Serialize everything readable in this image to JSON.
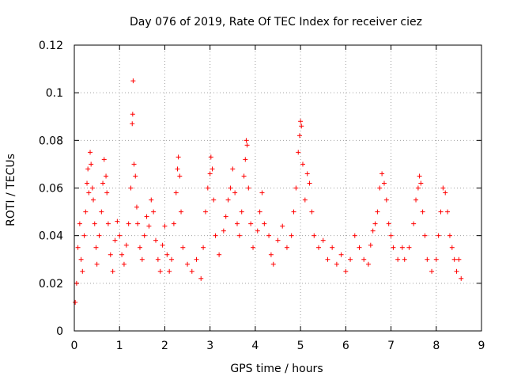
{
  "chart_data": {
    "type": "scatter",
    "title": "Day 076 of 2019, Rate Of TEC Index for receiver ciez",
    "xlabel": "GPS time / hours",
    "ylabel": "ROTI / TECUs",
    "xlim": [
      0,
      9
    ],
    "ylim": [
      0,
      0.12
    ],
    "x_ticks": [
      "0",
      "1",
      "2",
      "3",
      "4",
      "5",
      "6",
      "7",
      "8",
      "9"
    ],
    "y_ticks": [
      "0",
      "0.02",
      "0.04",
      "0.06",
      "0.08",
      "0.1",
      "0.12"
    ],
    "grid": true,
    "marker": "+",
    "color": "#ff0000",
    "series": [
      {
        "name": "ROTI",
        "points": [
          [
            0.02,
            0.012
          ],
          [
            0.05,
            0.02
          ],
          [
            0.08,
            0.035
          ],
          [
            0.12,
            0.045
          ],
          [
            0.15,
            0.03
          ],
          [
            0.18,
            0.025
          ],
          [
            0.22,
            0.04
          ],
          [
            0.25,
            0.05
          ],
          [
            0.28,
            0.062
          ],
          [
            0.3,
            0.068
          ],
          [
            0.32,
            0.058
          ],
          [
            0.35,
            0.075
          ],
          [
            0.37,
            0.07
          ],
          [
            0.4,
            0.06
          ],
          [
            0.42,
            0.055
          ],
          [
            0.45,
            0.045
          ],
          [
            0.48,
            0.035
          ],
          [
            0.5,
            0.028
          ],
          [
            0.55,
            0.04
          ],
          [
            0.6,
            0.05
          ],
          [
            0.63,
            0.062
          ],
          [
            0.66,
            0.072
          ],
          [
            0.7,
            0.065
          ],
          [
            0.72,
            0.058
          ],
          [
            0.75,
            0.045
          ],
          [
            0.8,
            0.032
          ],
          [
            0.85,
            0.025
          ],
          [
            0.9,
            0.038
          ],
          [
            0.95,
            0.046
          ],
          [
            1.0,
            0.04
          ],
          [
            1.05,
            0.032
          ],
          [
            1.1,
            0.028
          ],
          [
            1.15,
            0.036
          ],
          [
            1.2,
            0.045
          ],
          [
            1.25,
            0.06
          ],
          [
            1.28,
            0.087
          ],
          [
            1.29,
            0.091
          ],
          [
            1.3,
            0.105
          ],
          [
            1.32,
            0.07
          ],
          [
            1.35,
            0.065
          ],
          [
            1.38,
            0.052
          ],
          [
            1.4,
            0.045
          ],
          [
            1.45,
            0.035
          ],
          [
            1.5,
            0.03
          ],
          [
            1.55,
            0.04
          ],
          [
            1.6,
            0.048
          ],
          [
            1.65,
            0.044
          ],
          [
            1.7,
            0.055
          ],
          [
            1.75,
            0.05
          ],
          [
            1.8,
            0.038
          ],
          [
            1.85,
            0.03
          ],
          [
            1.9,
            0.025
          ],
          [
            1.95,
            0.036
          ],
          [
            2.0,
            0.044
          ],
          [
            2.05,
            0.032
          ],
          [
            2.1,
            0.025
          ],
          [
            2.15,
            0.03
          ],
          [
            2.2,
            0.045
          ],
          [
            2.25,
            0.058
          ],
          [
            2.28,
            0.068
          ],
          [
            2.3,
            0.073
          ],
          [
            2.33,
            0.065
          ],
          [
            2.36,
            0.05
          ],
          [
            2.4,
            0.035
          ],
          [
            2.5,
            0.028
          ],
          [
            2.6,
            0.025
          ],
          [
            2.7,
            0.03
          ],
          [
            2.8,
            0.022
          ],
          [
            2.85,
            0.035
          ],
          [
            2.9,
            0.05
          ],
          [
            2.95,
            0.06
          ],
          [
            3.0,
            0.066
          ],
          [
            3.02,
            0.073
          ],
          [
            3.05,
            0.068
          ],
          [
            3.08,
            0.055
          ],
          [
            3.12,
            0.04
          ],
          [
            3.2,
            0.032
          ],
          [
            3.3,
            0.042
          ],
          [
            3.35,
            0.048
          ],
          [
            3.4,
            0.055
          ],
          [
            3.45,
            0.06
          ],
          [
            3.5,
            0.068
          ],
          [
            3.55,
            0.058
          ],
          [
            3.6,
            0.045
          ],
          [
            3.65,
            0.04
          ],
          [
            3.7,
            0.05
          ],
          [
            3.75,
            0.065
          ],
          [
            3.78,
            0.072
          ],
          [
            3.8,
            0.08
          ],
          [
            3.82,
            0.078
          ],
          [
            3.85,
            0.06
          ],
          [
            3.9,
            0.045
          ],
          [
            3.95,
            0.035
          ],
          [
            4.05,
            0.042
          ],
          [
            4.1,
            0.05
          ],
          [
            4.15,
            0.058
          ],
          [
            4.2,
            0.045
          ],
          [
            4.3,
            0.04
          ],
          [
            4.35,
            0.032
          ],
          [
            4.4,
            0.028
          ],
          [
            4.5,
            0.038
          ],
          [
            4.6,
            0.044
          ],
          [
            4.7,
            0.035
          ],
          [
            4.8,
            0.04
          ],
          [
            4.85,
            0.05
          ],
          [
            4.9,
            0.06
          ],
          [
            4.95,
            0.075
          ],
          [
            4.98,
            0.082
          ],
          [
            5.0,
            0.088
          ],
          [
            5.02,
            0.086
          ],
          [
            5.05,
            0.07
          ],
          [
            5.1,
            0.055
          ],
          [
            5.15,
            0.066
          ],
          [
            5.2,
            0.062
          ],
          [
            5.25,
            0.05
          ],
          [
            5.3,
            0.04
          ],
          [
            5.4,
            0.035
          ],
          [
            5.5,
            0.038
          ],
          [
            5.6,
            0.03
          ],
          [
            5.7,
            0.035
          ],
          [
            5.8,
            0.028
          ],
          [
            5.9,
            0.032
          ],
          [
            6.0,
            0.025
          ],
          [
            6.1,
            0.03
          ],
          [
            6.2,
            0.04
          ],
          [
            6.3,
            0.035
          ],
          [
            6.4,
            0.03
          ],
          [
            6.5,
            0.028
          ],
          [
            6.55,
            0.036
          ],
          [
            6.6,
            0.042
          ],
          [
            6.65,
            0.045
          ],
          [
            6.7,
            0.05
          ],
          [
            6.75,
            0.06
          ],
          [
            6.8,
            0.066
          ],
          [
            6.85,
            0.062
          ],
          [
            6.9,
            0.055
          ],
          [
            6.95,
            0.045
          ],
          [
            7.0,
            0.04
          ],
          [
            7.05,
            0.035
          ],
          [
            7.15,
            0.03
          ],
          [
            7.25,
            0.035
          ],
          [
            7.3,
            0.03
          ],
          [
            7.4,
            0.035
          ],
          [
            7.5,
            0.045
          ],
          [
            7.55,
            0.055
          ],
          [
            7.6,
            0.06
          ],
          [
            7.63,
            0.065
          ],
          [
            7.66,
            0.062
          ],
          [
            7.7,
            0.05
          ],
          [
            7.75,
            0.04
          ],
          [
            7.8,
            0.03
          ],
          [
            7.9,
            0.025
          ],
          [
            8.0,
            0.03
          ],
          [
            8.05,
            0.04
          ],
          [
            8.1,
            0.05
          ],
          [
            8.15,
            0.06
          ],
          [
            8.2,
            0.058
          ],
          [
            8.25,
            0.05
          ],
          [
            8.3,
            0.04
          ],
          [
            8.35,
            0.035
          ],
          [
            8.4,
            0.03
          ],
          [
            8.45,
            0.025
          ],
          [
            8.5,
            0.03
          ],
          [
            8.55,
            0.022
          ]
        ]
      }
    ]
  }
}
